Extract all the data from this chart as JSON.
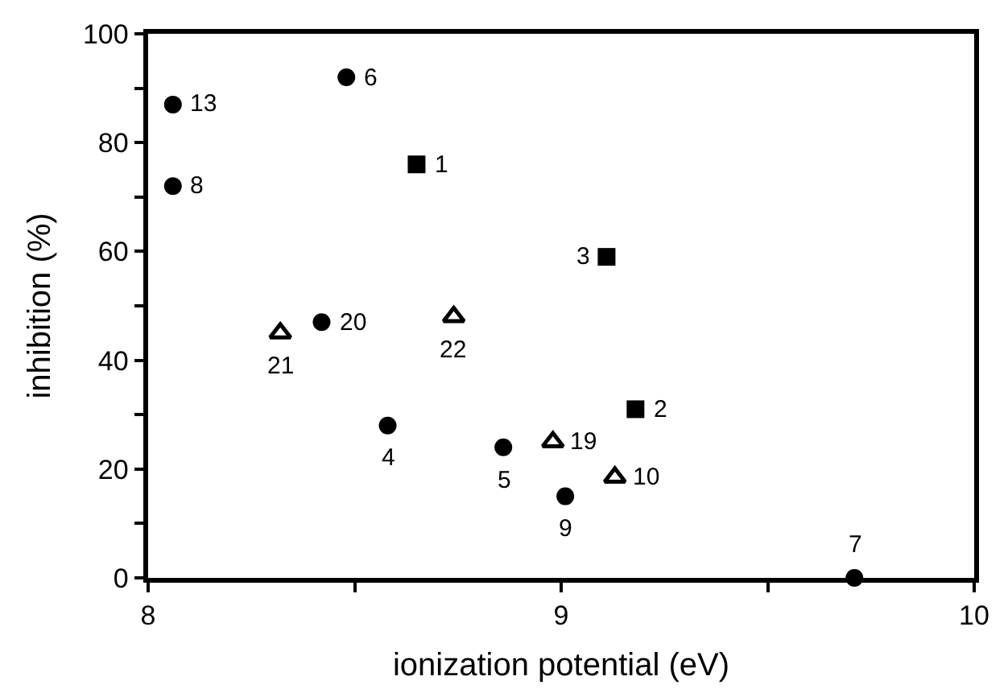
{
  "chart_data": {
    "type": "scatter",
    "xlabel": "ionization potential (eV)",
    "ylabel": "inhibition (%)",
    "xlim": [
      8,
      10
    ],
    "ylim": [
      0,
      100
    ],
    "xticks": [
      8,
      {
        "value": 8.5,
        "label": null
      },
      9,
      {
        "value": 9.5,
        "label": null
      },
      10
    ],
    "yticks": [
      0,
      {
        "value": 10,
        "label": null
      },
      20,
      {
        "value": 30,
        "label": null
      },
      40,
      {
        "value": 50,
        "label": null
      },
      60,
      {
        "value": 70,
        "label": null
      },
      80,
      {
        "value": 90,
        "label": null
      },
      100
    ],
    "series": [
      {
        "color": "#000000",
        "marker": "circle",
        "x": [
          8.06,
          8.06,
          8.48,
          8.42,
          8.58,
          8.86,
          9.01,
          9.71
        ],
        "values": [
          87,
          72,
          92,
          47,
          28,
          24,
          15,
          0
        ]
      },
      {
        "color": "#000000",
        "marker": "square",
        "x": [
          8.65,
          9.11,
          9.18
        ],
        "values": [
          76,
          59,
          31
        ]
      },
      {
        "color": "#000000",
        "marker": "triangle",
        "x": [
          8.32,
          8.74,
          8.98,
          9.13
        ],
        "values": [
          45,
          48,
          25,
          18.5
        ]
      }
    ],
    "annotations": [
      {
        "text": "13",
        "x": 8.06,
        "y": 87
      },
      {
        "text": "8",
        "x": 8.06,
        "y": 72
      },
      {
        "text": "6",
        "x": 8.48,
        "y": 92
      },
      {
        "text": "20",
        "x": 8.42,
        "y": 47
      },
      {
        "text": "4",
        "x": 8.58,
        "y": 28
      },
      {
        "text": "5",
        "x": 8.86,
        "y": 24
      },
      {
        "text": "9",
        "x": 9.01,
        "y": 15
      },
      {
        "text": "7",
        "x": 9.71,
        "y": 0
      },
      {
        "text": "1",
        "x": 8.65,
        "y": 76
      },
      {
        "text": "3",
        "x": 9.11,
        "y": 59
      },
      {
        "text": "2",
        "x": 9.18,
        "y": 31
      },
      {
        "text": "21",
        "x": 8.32,
        "y": 45
      },
      {
        "text": "22",
        "x": 8.74,
        "y": 48
      },
      {
        "text": "19",
        "x": 8.98,
        "y": 25
      },
      {
        "text": "10",
        "x": 9.13,
        "y": 18.5
      }
    ]
  }
}
